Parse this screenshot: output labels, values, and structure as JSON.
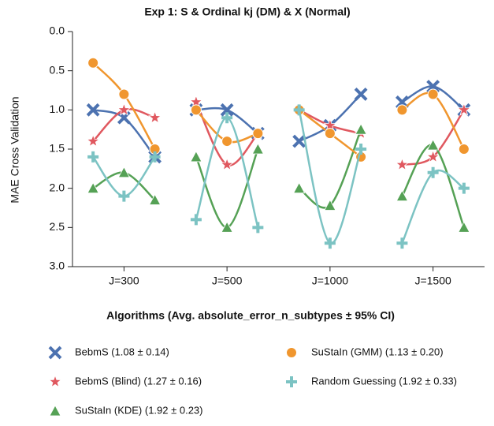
{
  "chart_data": {
    "type": "grouped-curves",
    "title": "Exp 1: S & Ordinal kj (DM) & X (Normal)",
    "y_label": "MAE Cross Validation",
    "categories": [
      "J=300",
      "J=500",
      "J=1000",
      "J=1500"
    ],
    "ylim": [
      0,
      3
    ],
    "y_inverted": true,
    "yticks": [
      {
        "value": 0,
        "label": "0.0"
      },
      {
        "value": 0.5,
        "label": "0.5"
      },
      {
        "value": 1,
        "label": "1.0"
      },
      {
        "value": 1.5,
        "label": "1.5"
      },
      {
        "value": 2,
        "label": "2.0"
      },
      {
        "value": 2.5,
        "label": "2.5"
      },
      {
        "value": 3,
        "label": "3.0"
      }
    ],
    "legend_title": "Algorithms (Avg. absolute_error_n_subtypes ± 95% CI)",
    "series": [
      {
        "name": "BebmS (1.08 ± 0.14)",
        "color": "#4c72b0",
        "marker": "x",
        "values": [
          [
            1.0,
            1.1,
            1.6
          ],
          [
            1.0,
            1.0,
            1.3
          ],
          [
            1.4,
            1.2,
            0.8
          ],
          [
            0.9,
            0.7,
            1.0
          ]
        ]
      },
      {
        "name": "BebmS (Blind) (1.27 ± 0.16)",
        "color": "#e0585f",
        "marker": "star",
        "values": [
          [
            1.4,
            1.0,
            1.1
          ],
          [
            0.9,
            1.7,
            1.3
          ],
          [
            1.0,
            1.2,
            1.3
          ],
          [
            1.7,
            1.6,
            1.0
          ]
        ]
      },
      {
        "name": "SuStaIn (KDE) (1.92 ± 0.23)",
        "color": "#55a155",
        "marker": "triangle",
        "values": [
          [
            2.0,
            1.8,
            2.15
          ],
          [
            1.6,
            2.5,
            1.5
          ],
          [
            2.0,
            2.22,
            1.25
          ],
          [
            2.1,
            1.45,
            2.5
          ]
        ]
      },
      {
        "name": "SuStaIn (GMM) (1.13 ± 0.20)",
        "color": "#f0962e",
        "marker": "circle",
        "values": [
          [
            0.4,
            0.8,
            1.5
          ],
          [
            1.0,
            1.4,
            1.3
          ],
          [
            1.0,
            1.3,
            1.6
          ],
          [
            1.0,
            0.8,
            1.5
          ]
        ]
      },
      {
        "name": "Random Guessing (1.92 ± 0.33)",
        "color": "#7cc3c3",
        "marker": "plus",
        "values": [
          [
            1.6,
            2.1,
            1.6
          ],
          [
            2.4,
            1.1,
            2.5
          ],
          [
            1.0,
            2.7,
            1.5
          ],
          [
            2.7,
            1.8,
            2.0
          ]
        ]
      }
    ]
  }
}
